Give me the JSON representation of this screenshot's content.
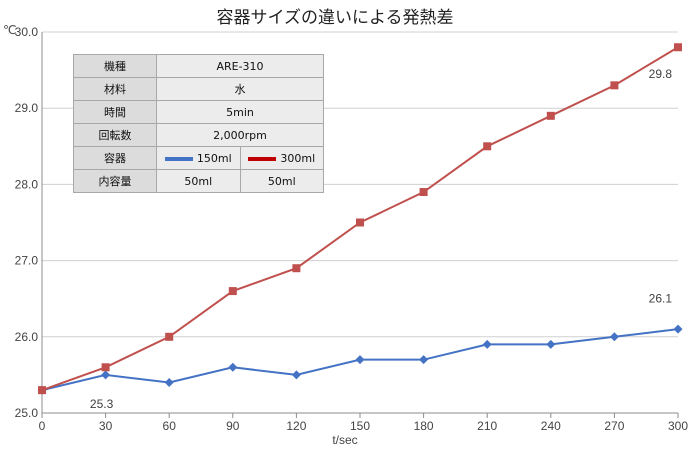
{
  "chart_data": {
    "type": "line",
    "title": "容器サイズの違いによる発熱差",
    "unit_label": "℃",
    "xlabel": "t/sec",
    "x": [
      0,
      30,
      60,
      90,
      120,
      150,
      180,
      210,
      240,
      270,
      300
    ],
    "x_tick_labels": [
      "0",
      "30",
      "60",
      "90",
      "120",
      "150",
      "180",
      "210",
      "240",
      "270",
      "300"
    ],
    "y_tick_labels": [
      "25.0",
      "26.0",
      "27.0",
      "28.0",
      "29.0",
      "30.0"
    ],
    "ylim": [
      25.0,
      30.0
    ],
    "grid": "horizontal",
    "series": [
      {
        "name": "150ml",
        "color": "#4472c4",
        "marker": "diamond",
        "values": [
          25.3,
          25.5,
          25.4,
          25.6,
          25.5,
          25.7,
          25.7,
          25.9,
          25.9,
          26.0,
          26.1
        ]
      },
      {
        "name": "300ml",
        "color": "#c0504d",
        "marker": "square",
        "values": [
          25.3,
          25.6,
          26.0,
          26.6,
          26.9,
          27.5,
          27.9,
          28.5,
          28.9,
          29.3,
          29.8
        ]
      }
    ],
    "annotations": [
      {
        "text": "25.3",
        "x": 30,
        "y": 25.12
      },
      {
        "text": "26.1",
        "x": 300,
        "y": 26.5
      },
      {
        "text": "29.8",
        "x": 300,
        "y": 29.45
      }
    ]
  },
  "info_table": {
    "model_label": "機種",
    "model_value": "ARE-310",
    "material_label": "材料",
    "material_value": "水",
    "time_label": "時間",
    "time_value": "5min",
    "speed_label": "回転数",
    "speed_value": "2,000rpm",
    "container_label": "容器",
    "container_a": "150ml",
    "container_b": "300ml",
    "volume_label": "内容量",
    "volume_a": "50ml",
    "volume_b": "50ml"
  }
}
